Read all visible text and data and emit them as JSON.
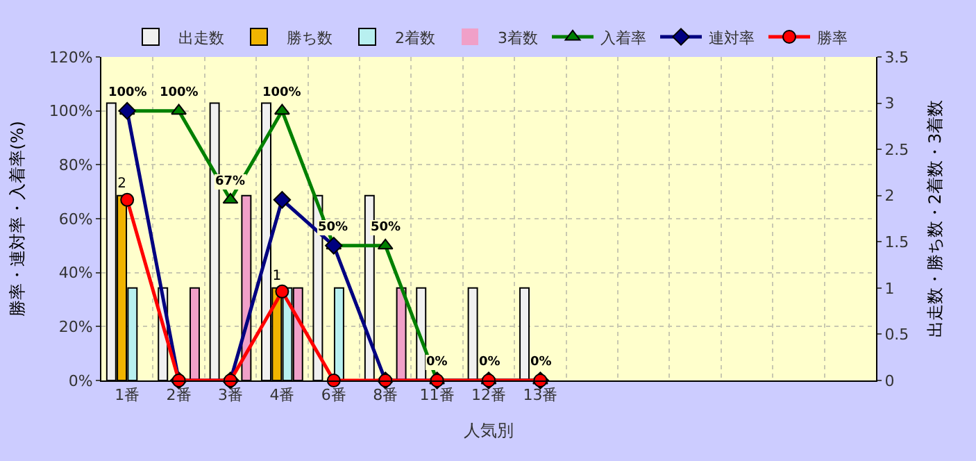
{
  "chart_data": {
    "type": "bar",
    "categories": [
      "1番",
      "2番",
      "3番",
      "4番",
      "6番",
      "8番",
      "11番",
      "12番",
      "13番",
      null,
      null,
      null,
      null,
      null,
      null
    ],
    "xlabel": "人気別",
    "ylabel": "勝率・連対率・入着率(%)",
    "y2label": "出走数・勝ち数・2着数・3着数",
    "ylim": [
      0,
      120
    ],
    "yticks": [
      {
        "value": 0,
        "label": "0%"
      },
      {
        "value": 20,
        "label": "20%"
      },
      {
        "value": 40,
        "label": "40%"
      },
      {
        "value": 60,
        "label": "60%"
      },
      {
        "value": 80,
        "label": "80%"
      },
      {
        "value": 100,
        "label": "100%"
      },
      {
        "value": 120,
        "label": "120%"
      }
    ],
    "y2lim": [
      0,
      3.5
    ],
    "y2ticks": [
      0,
      0.5,
      1,
      1.5,
      2,
      2.5,
      3,
      3.5
    ],
    "grid": true,
    "legend": "top",
    "series": [
      {
        "name": "出走数",
        "axis": "y2",
        "color": "#f0f0f0",
        "values": [
          3,
          1,
          3,
          3,
          2,
          2,
          1,
          1,
          1,
          null,
          null,
          null,
          null,
          null,
          null
        ]
      },
      {
        "name": "勝ち数",
        "axis": "y2",
        "color": "#f0b400",
        "values": [
          2,
          0,
          0,
          1,
          0,
          0,
          0,
          0,
          0,
          null,
          null,
          null,
          null,
          null,
          null
        ],
        "value_labels": [
          "2",
          null,
          null,
          "1",
          null,
          null,
          null,
          null,
          null,
          null,
          null,
          null,
          null,
          null,
          null
        ]
      },
      {
        "name": "2着数",
        "axis": "y2",
        "color": "#b8f0f0",
        "values": [
          1,
          0,
          0,
          1,
          1,
          0,
          0,
          0,
          0,
          null,
          null,
          null,
          null,
          null,
          null
        ]
      },
      {
        "name": "3着数",
        "axis": "y2",
        "color": "#f0a0c8",
        "values": [
          0,
          1,
          2,
          1,
          0,
          1,
          0,
          0,
          0,
          null,
          null,
          null,
          null,
          null,
          null
        ]
      },
      {
        "name": "入着率",
        "type": "line",
        "marker": "triangle",
        "color": "#008000",
        "values": [
          100,
          100,
          67,
          100,
          50,
          50,
          0,
          0,
          0,
          null,
          null,
          null,
          null,
          null,
          null
        ],
        "value_labels": [
          "100%",
          "100%",
          "67%",
          "100%",
          "50%",
          "50%",
          "0%",
          "0%",
          "0%",
          null,
          null,
          null,
          null,
          null,
          null
        ]
      },
      {
        "name": "連対率",
        "type": "line",
        "marker": "diamond",
        "color": "#000080",
        "values": [
          100,
          0,
          0,
          67,
          50,
          0,
          0,
          0,
          0,
          null,
          null,
          null,
          null,
          null,
          null
        ]
      },
      {
        "name": "勝率",
        "type": "line",
        "marker": "circle",
        "color": "#ff0000",
        "values": [
          67,
          0,
          0,
          33,
          0,
          0,
          0,
          0,
          0,
          null,
          null,
          null,
          null,
          null,
          null
        ]
      }
    ]
  }
}
